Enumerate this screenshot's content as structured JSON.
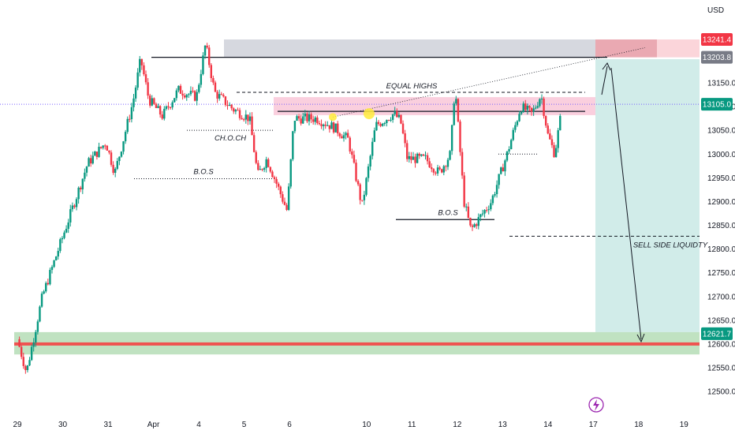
{
  "currency_label": "USD",
  "chart_data": {
    "type": "candlestick",
    "y_axis": {
      "range": [
        12470,
        13295
      ],
      "ticks": [
        "13150.0",
        "13100.0",
        "13050.0",
        "13000.0",
        "12950.0",
        "12900.0",
        "12850.0",
        "12800.0",
        "12750.0",
        "12700.0",
        "12650.0",
        "12600.0",
        "12550.0",
        "12500.0"
      ],
      "tick_values": [
        13150,
        13100,
        13050,
        13000,
        12950,
        12900,
        12850,
        12800,
        12750,
        12700,
        12650,
        12600,
        12550,
        12500
      ]
    },
    "x_axis": {
      "ticks": [
        {
          "label": "29",
          "slot": 0
        },
        {
          "label": "30",
          "slot": 1
        },
        {
          "label": "31",
          "slot": 2
        },
        {
          "label": "Apr",
          "slot": 3
        },
        {
          "label": "4",
          "slot": 4
        },
        {
          "label": "5",
          "slot": 5
        },
        {
          "label": "6",
          "slot": 6
        },
        {
          "label": "10",
          "slot": 7.7
        },
        {
          "label": "11",
          "slot": 8.7
        },
        {
          "label": "12",
          "slot": 9.7
        },
        {
          "label": "13",
          "slot": 10.7
        },
        {
          "label": "14",
          "slot": 11.7
        },
        {
          "label": "17",
          "slot": 12.7
        },
        {
          "label": "18",
          "slot": 13.7
        },
        {
          "label": "19",
          "slot": 14.7
        }
      ]
    },
    "price_tags": [
      {
        "label": "13241.4",
        "value": 13241.4,
        "color": "#f23645"
      },
      {
        "label": "13203.8",
        "value": 13203.8,
        "color": "#787b86"
      },
      {
        "label": "13105.0",
        "value": 13105.0,
        "color": "#089981"
      },
      {
        "label": "12621.7",
        "value": 12621.7,
        "color": "#089981"
      }
    ],
    "current_price": 13105.0,
    "path_anchors": [
      [
        0,
        12610
      ],
      [
        0.2,
        12540
      ],
      [
        0.55,
        12700
      ],
      [
        1.05,
        12840
      ],
      [
        1.55,
        12980
      ],
      [
        1.95,
        13025
      ],
      [
        2.15,
        12960
      ],
      [
        2.55,
        13110
      ],
      [
        2.72,
        13200
      ],
      [
        2.9,
        13115
      ],
      [
        3.2,
        13080
      ],
      [
        3.55,
        13135
      ],
      [
        3.95,
        13120
      ],
      [
        4.15,
        13232
      ],
      [
        4.35,
        13130
      ],
      [
        4.75,
        13095
      ],
      [
        5.12,
        13075
      ],
      [
        5.3,
        12955
      ],
      [
        5.5,
        12990
      ],
      [
        5.75,
        12930
      ],
      [
        5.95,
        12880
      ],
      [
        6.1,
        13075
      ],
      [
        6.6,
        13075
      ],
      [
        7.0,
        13055
      ],
      [
        7.3,
        13030
      ],
      [
        7.6,
        12890
      ],
      [
        7.9,
        13060
      ],
      [
        8.3,
        13085
      ],
      [
        8.45,
        13070
      ],
      [
        8.6,
        12990
      ],
      [
        9.0,
        12990
      ],
      [
        9.3,
        12960
      ],
      [
        9.55,
        13000
      ],
      [
        9.65,
        13145
      ],
      [
        9.85,
        12900
      ],
      [
        10.0,
        12840
      ],
      [
        10.45,
        12900
      ],
      [
        10.8,
        13000
      ],
      [
        11.1,
        13100
      ],
      [
        11.35,
        13085
      ],
      [
        11.55,
        13125
      ],
      [
        11.7,
        13040
      ],
      [
        11.85,
        13000
      ],
      [
        12.0,
        13090
      ]
    ],
    "annotations": {
      "choch": "CH.O.CH",
      "bos_left": "B.O.S",
      "bos_right": "B.O.S",
      "equal_highs": "EQUAL HIGHS",
      "sell_side_liquidity": "SELL SIDE LIQUIDTY"
    },
    "levels": {
      "choch_level": 13050,
      "bos_left_level": 12948,
      "bos_right_level": 12862,
      "resistance_line": 13203.8,
      "equal_highs_level": 13130,
      "supply_zone": [
        13082,
        13120
      ],
      "sell_side_liquidity_level": 12827,
      "target_line": 12600,
      "demand_zone": [
        12578,
        12625
      ],
      "top_grey_zone": [
        13203.8,
        13241.4
      ]
    },
    "colors": {
      "up": "#089981",
      "down": "#f23645",
      "target_zone": "#b2dfdb",
      "supply_zone": "#f8bbd0",
      "demand_zone": "#a5d6a7",
      "target_line": "#ef5350",
      "grey_zone": "#d1d4dc",
      "highlight": "#ffeb3b",
      "lightning_icon": "#9c27b0"
    }
  }
}
